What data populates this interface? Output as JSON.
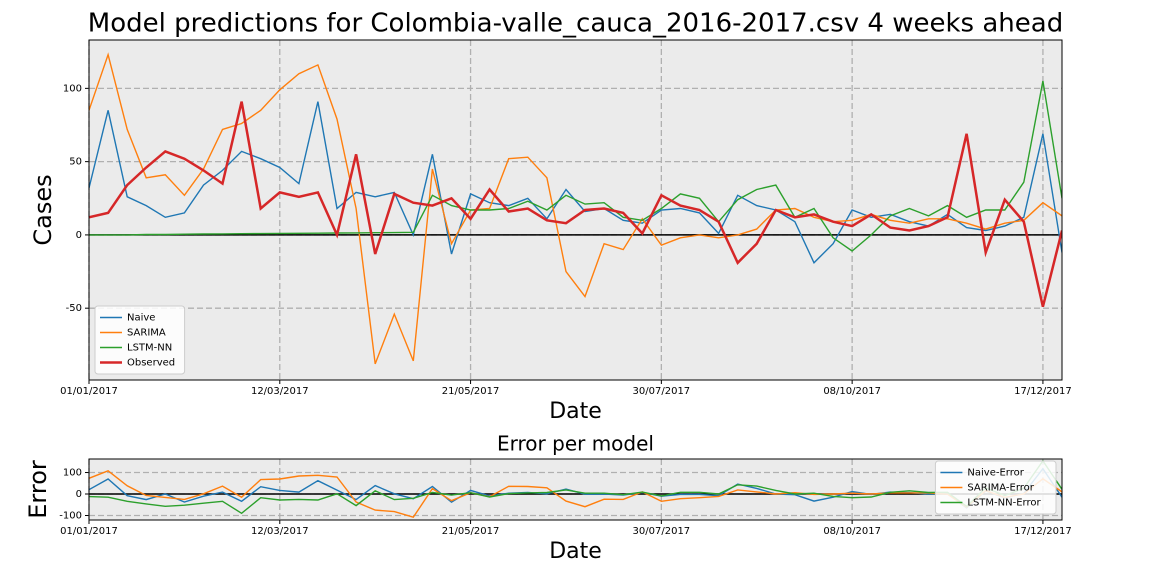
{
  "chart_data": [
    {
      "type": "line",
      "title": "Model predictions for Colombia-valle_cauca_2016-2017.csv 4 weeks ahead",
      "xlabel": "Date",
      "ylabel": "Cases",
      "x": [
        "01/01/2017",
        "08/01/2017",
        "15/01/2017",
        "22/01/2017",
        "29/01/2017",
        "05/02/2017",
        "12/02/2017",
        "19/02/2017",
        "26/02/2017",
        "05/03/2017",
        "12/03/2017",
        "19/03/2017",
        "26/03/2017",
        "02/04/2017",
        "09/04/2017",
        "16/04/2017",
        "23/04/2017",
        "30/04/2017",
        "07/05/2017",
        "14/05/2017",
        "21/05/2017",
        "28/05/2017",
        "04/06/2017",
        "11/06/2017",
        "18/06/2017",
        "25/06/2017",
        "02/07/2017",
        "09/07/2017",
        "16/07/2017",
        "23/07/2017",
        "30/07/2017",
        "06/08/2017",
        "13/08/2017",
        "20/08/2017",
        "27/08/2017",
        "03/09/2017",
        "10/09/2017",
        "17/09/2017",
        "24/09/2017",
        "01/10/2017",
        "08/10/2017",
        "15/10/2017",
        "22/10/2017",
        "29/10/2017",
        "05/11/2017",
        "12/11/2017",
        "19/11/2017",
        "26/11/2017",
        "03/12/2017",
        "10/12/2017",
        "17/12/2017",
        "24/12/2017"
      ],
      "xlim": [
        "01/01/2017",
        "24/12/2017"
      ],
      "xticks": [
        "01/01/2017",
        "12/03/2017",
        "21/05/2017",
        "30/07/2017",
        "08/10/2017",
        "17/12/2017"
      ],
      "ylim": [
        -99,
        133
      ],
      "yticks": [
        -50,
        0,
        50,
        100
      ],
      "grid": true,
      "legend": "lower left",
      "series": [
        {
          "name": "Naive",
          "color": "#1f77b4",
          "values": [
            32,
            85,
            26,
            20,
            12,
            15,
            34,
            44,
            57,
            52,
            46,
            35,
            91,
            18,
            29,
            26,
            29,
            0,
            55,
            -13,
            28,
            22,
            20,
            25,
            11,
            31,
            16,
            18,
            10,
            8,
            17,
            18,
            15,
            1,
            27,
            20,
            17,
            9,
            -19,
            -6,
            17,
            12,
            14,
            9,
            6,
            14,
            5,
            3,
            6,
            12,
            69,
            -12
          ]
        },
        {
          "name": "SARIMA",
          "color": "#ff7f0e",
          "values": [
            85,
            123,
            72,
            39,
            41,
            27,
            45,
            72,
            76,
            85,
            99,
            110,
            116,
            79,
            18,
            -88,
            -54,
            -86,
            45,
            -6,
            17,
            18,
            52,
            53,
            39,
            -25,
            -42,
            -6,
            -10,
            11,
            -7,
            -2,
            0,
            -2,
            0,
            4,
            17,
            18,
            12,
            9,
            10,
            14,
            10,
            8,
            11,
            11,
            8,
            4,
            8,
            10,
            22,
            13
          ]
        },
        {
          "name": "LSTM-NN",
          "color": "#2ca02c",
          "values": [
            0,
            0,
            0,
            0.3,
            0.3,
            0.5,
            0.6,
            0.7,
            0.8,
            0.9,
            1,
            1.1,
            1.2,
            1.3,
            1.4,
            1.5,
            1.6,
            1.8,
            27,
            20,
            17,
            17,
            18,
            23,
            17,
            27,
            21,
            22,
            12,
            10,
            18,
            28,
            25,
            9,
            24,
            31,
            34,
            12,
            18,
            -2,
            -11,
            0,
            13,
            18,
            13,
            20,
            12,
            17,
            17,
            36,
            105,
            25
          ]
        },
        {
          "name": "Observed",
          "color": "#d62728",
          "values": [
            12,
            15,
            34,
            46,
            57,
            52,
            44,
            35,
            91,
            18,
            29,
            26,
            29,
            0,
            55,
            -13,
            28,
            22,
            20,
            25,
            11,
            31,
            16,
            18,
            10,
            8,
            17,
            18,
            15,
            1,
            27,
            20,
            17,
            9,
            -19,
            -6,
            17,
            12,
            14,
            9,
            6,
            14,
            5,
            3,
            6,
            12,
            69,
            -12,
            24,
            9,
            -49,
            3
          ]
        }
      ]
    },
    {
      "type": "line",
      "title": "Error per model",
      "xlabel": "Date",
      "ylabel": "Error",
      "x": [
        "01/01/2017",
        "08/01/2017",
        "15/01/2017",
        "22/01/2017",
        "29/01/2017",
        "05/02/2017",
        "12/02/2017",
        "19/02/2017",
        "26/02/2017",
        "05/03/2017",
        "12/03/2017",
        "19/03/2017",
        "26/03/2017",
        "02/04/2017",
        "09/04/2017",
        "16/04/2017",
        "23/04/2017",
        "30/04/2017",
        "07/05/2017",
        "14/05/2017",
        "21/05/2017",
        "28/05/2017",
        "04/06/2017",
        "11/06/2017",
        "18/06/2017",
        "25/06/2017",
        "02/07/2017",
        "09/07/2017",
        "16/07/2017",
        "23/07/2017",
        "30/07/2017",
        "06/08/2017",
        "13/08/2017",
        "20/08/2017",
        "27/08/2017",
        "03/09/2017",
        "10/09/2017",
        "17/09/2017",
        "24/09/2017",
        "01/10/2017",
        "08/10/2017",
        "15/10/2017",
        "22/10/2017",
        "29/10/2017",
        "05/11/2017",
        "12/11/2017",
        "19/11/2017",
        "26/11/2017",
        "03/12/2017",
        "10/12/2017",
        "17/12/2017",
        "24/12/2017"
      ],
      "xlim": [
        "01/01/2017",
        "24/12/2017"
      ],
      "xticks": [
        "01/01/2017",
        "12/03/2017",
        "21/05/2017",
        "30/07/2017",
        "08/10/2017",
        "17/12/2017"
      ],
      "ylim": [
        -121,
        163
      ],
      "yticks": [
        -100,
        0,
        100
      ],
      "grid": true,
      "legend": "lower right",
      "series": [
        {
          "name": "Naive-Error",
          "color": "#1f77b4",
          "values": [
            20,
            70,
            -8,
            -26,
            0,
            -37,
            -10,
            9,
            -34,
            34,
            17,
            9,
            62,
            18,
            -26,
            39,
            1,
            -22,
            35,
            -38,
            17,
            -9,
            4,
            7,
            1,
            23,
            -1,
            0,
            -5,
            7,
            -10,
            -2,
            -2,
            -8,
            46,
            26,
            0,
            -3,
            -33,
            -15,
            11,
            -2,
            9,
            6,
            0,
            2,
            -64,
            15,
            -18,
            3,
            118,
            -15
          ]
        },
        {
          "name": "SARIMA-Error",
          "color": "#ff7f0e",
          "values": [
            73,
            108,
            38,
            -7,
            -16,
            -25,
            1,
            37,
            -15,
            67,
            70,
            84,
            87,
            79,
            -37,
            -75,
            -82,
            -108,
            25,
            -31,
            6,
            -13,
            36,
            35,
            29,
            -33,
            -59,
            -24,
            -25,
            10,
            -34,
            -22,
            -17,
            -11,
            19,
            10,
            0,
            6,
            -2,
            0,
            4,
            0,
            5,
            5,
            5,
            -1,
            -61,
            16,
            -16,
            1,
            71,
            10
          ]
        },
        {
          "name": "LSTM-NN-Error",
          "color": "#2ca02c",
          "values": [
            -12,
            -15,
            -34,
            -46,
            -57,
            -52,
            -43,
            -34,
            -90,
            -17,
            -28,
            -25,
            -28,
            1,
            -54,
            15,
            -26,
            -20,
            7,
            -5,
            6,
            -14,
            2,
            5,
            7,
            19,
            4,
            4,
            -3,
            9,
            -9,
            8,
            8,
            0,
            43,
            37,
            17,
            0,
            4,
            -11,
            -17,
            -14,
            8,
            15,
            7,
            8,
            -57,
            29,
            -7,
            27,
            154,
            22
          ]
        }
      ]
    }
  ]
}
